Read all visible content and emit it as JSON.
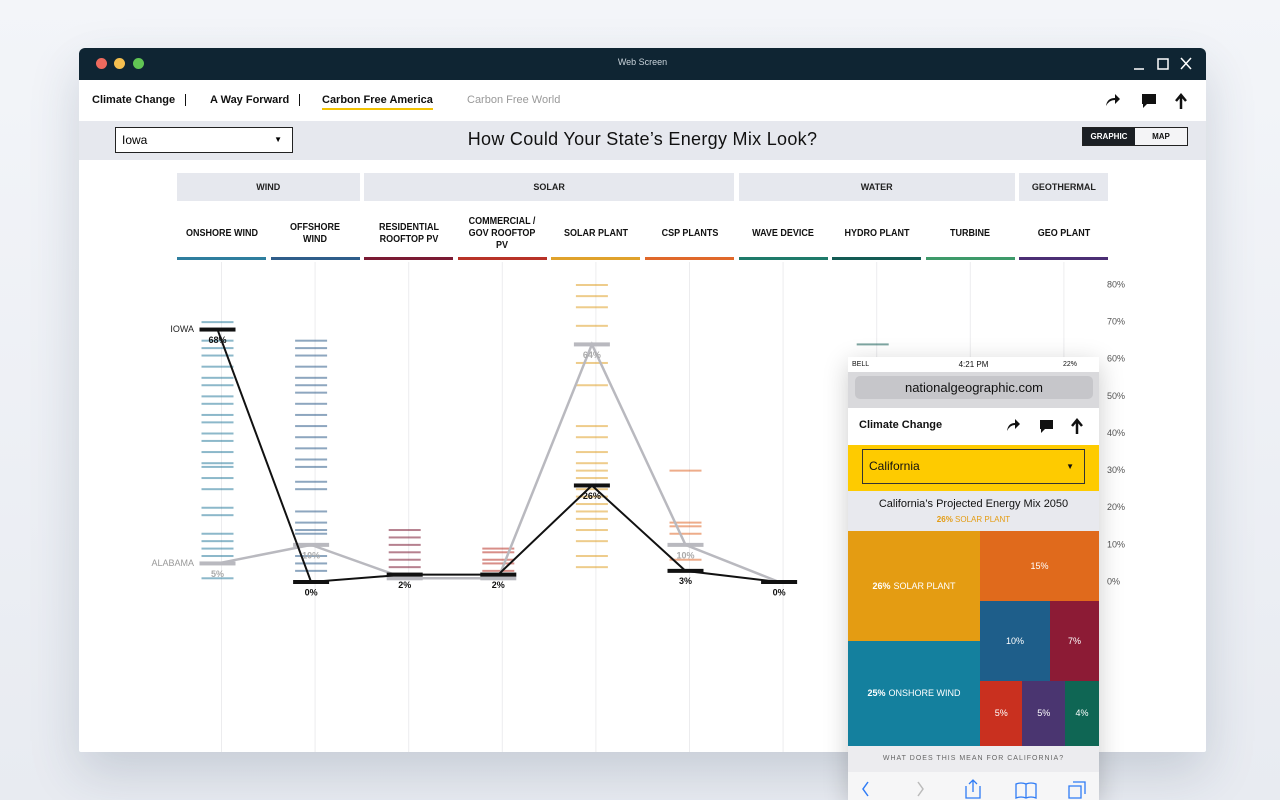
{
  "window": {
    "title": "Web Screen"
  },
  "nav": {
    "items": [
      "Climate Change",
      "A Way Forward",
      "Carbon Free America",
      "Carbon Free World"
    ]
  },
  "state_select": {
    "value": "Iowa"
  },
  "heading": "How Could Your State’s Energy Mix Look?",
  "view_toggle": [
    "GRAPHIC",
    "MAP"
  ],
  "chart_data": [
    {
      "type": "parallel",
      "category_groups": [
        "WIND",
        "WIND",
        "SOLAR",
        "SOLAR",
        "SOLAR",
        "SOLAR",
        "WATER",
        "WATER",
        "WATER",
        "GEOTHERMAL"
      ],
      "categories": [
        "ONSHORE WIND",
        "OFFSHORE WIND",
        "RESIDENTIAL ROOFTOP PV",
        "COMMERCIAL / GOV ROOFTOP PV",
        "SOLAR PLANT",
        "CSP PLANTS",
        "WAVE DEVICE",
        "HYDRO PLANT",
        "TURBINE",
        "GEO PLANT"
      ],
      "colors": [
        "#2e7e9e",
        "#2f5d8a",
        "#7a1a33",
        "#b83227",
        "#e0a22b",
        "#e0682a",
        "#1e7a6a",
        "#135b54",
        "#3e9a6a",
        "#4b2e74"
      ],
      "series": [
        {
          "name": "IOWA",
          "color": "#111111",
          "values": [
            68,
            0,
            2,
            2,
            26,
            3,
            0,
            null,
            null,
            null
          ],
          "value_labels": [
            "68%",
            "0%",
            "2%",
            "2%",
            "26%",
            "3%",
            "0%",
            null,
            null,
            null
          ]
        },
        {
          "name": "ALABAMA",
          "color": "#b9b9bf",
          "values": [
            5,
            10,
            1,
            1,
            64,
            10,
            0,
            null,
            null,
            null
          ],
          "value_labels": [
            "5%",
            "10%",
            null,
            null,
            "64%",
            "10%",
            null,
            null,
            null,
            null
          ]
        }
      ],
      "state_ticks": [
        [
          70,
          65,
          63,
          61,
          58,
          55,
          53,
          50,
          48,
          45,
          43,
          40,
          38,
          35,
          32,
          31,
          28,
          25,
          20,
          18,
          13,
          11,
          9,
          7,
          1
        ],
        [
          65,
          63,
          61,
          58,
          55,
          53,
          51,
          48,
          45,
          42,
          39,
          36,
          33,
          31,
          27,
          25,
          19,
          16,
          14,
          13,
          7,
          5,
          3
        ],
        [
          14,
          12,
          10,
          8,
          6,
          4
        ],
        [
          9,
          8,
          6,
          5,
          3
        ],
        [
          80,
          77,
          74,
          69,
          59,
          53,
          42,
          39,
          35,
          32,
          30,
          28,
          25,
          23,
          21,
          19,
          17,
          14,
          11,
          7,
          4
        ],
        [
          30,
          16,
          15,
          13,
          6
        ],
        [
          0
        ],
        [
          64
        ],
        [],
        []
      ],
      "ylim": [
        0,
        80
      ],
      "yticks": [
        {
          "value": 0,
          "label": "0%"
        },
        {
          "value": 10,
          "label": "10%"
        },
        {
          "value": 20,
          "label": "20%"
        },
        {
          "value": 30,
          "label": "30%"
        },
        {
          "value": 40,
          "label": "40%"
        },
        {
          "value": 50,
          "label": "50%"
        },
        {
          "value": 60,
          "label": "60%"
        },
        {
          "value": 70,
          "label": "70%"
        },
        {
          "value": 80,
          "label": "80%"
        }
      ]
    },
    {
      "type": "treemap",
      "title": "California’s Projected Energy Mix 2050",
      "categories": [
        "SOLAR PLANT",
        null,
        null,
        null,
        "ONSHORE WIND",
        null,
        null,
        null
      ],
      "values": [
        26,
        15,
        10,
        7,
        25,
        5,
        5,
        4
      ],
      "value_labels": [
        "26%",
        "15%",
        "10%",
        "7%",
        "25%",
        "5%",
        "5%",
        "4%"
      ],
      "colors": [
        "#e49c12",
        "#e06a1c",
        "#1e5e8a",
        "#8c1b35",
        "#14809e",
        "#c9301f",
        "#4a3570",
        "#0f6654"
      ]
    }
  ],
  "phone": {
    "status": {
      "carrier": "BELL",
      "time": "4:21 PM",
      "battery": "22%"
    },
    "url": "nationalgeographic.com",
    "nav_title": "Climate Change",
    "state_select": {
      "value": "California"
    },
    "footer": "WHAT DOES THIS MEAN FOR CALIFORNIA?"
  }
}
